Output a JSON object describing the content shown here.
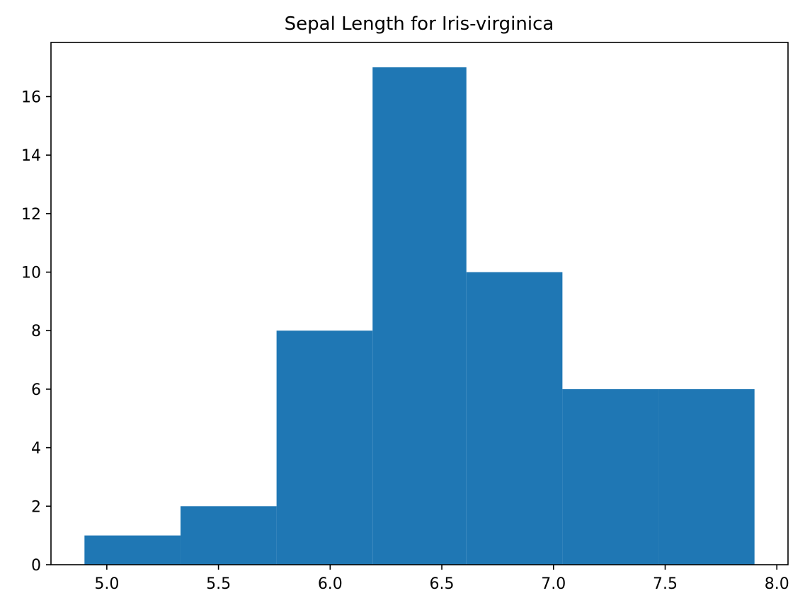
{
  "chart_data": {
    "type": "bar",
    "title": "Sepal Length for Iris-virginica",
    "xlabel": "",
    "ylabel": "",
    "bins": [
      {
        "x0": 4.9,
        "x1": 5.33,
        "count": 1
      },
      {
        "x0": 5.33,
        "x1": 5.76,
        "count": 2
      },
      {
        "x0": 5.76,
        "x1": 6.19,
        "count": 8
      },
      {
        "x0": 6.19,
        "x1": 6.61,
        "count": 17
      },
      {
        "x0": 6.61,
        "x1": 7.04,
        "count": 10
      },
      {
        "x0": 7.04,
        "x1": 7.47,
        "count": 6
      },
      {
        "x0": 7.47,
        "x1": 7.9,
        "count": 6
      }
    ],
    "xlim": [
      4.75,
      8.05
    ],
    "ylim": [
      0,
      17.85
    ],
    "xticks": [
      {
        "value": 5.0,
        "label": "5.0"
      },
      {
        "value": 5.5,
        "label": "5.5"
      },
      {
        "value": 6.0,
        "label": "6.0"
      },
      {
        "value": 6.5,
        "label": "6.5"
      },
      {
        "value": 7.0,
        "label": "7.0"
      },
      {
        "value": 7.5,
        "label": "7.5"
      },
      {
        "value": 8.0,
        "label": "8.0"
      }
    ],
    "yticks": [
      {
        "value": 0,
        "label": "0"
      },
      {
        "value": 2,
        "label": "2"
      },
      {
        "value": 4,
        "label": "4"
      },
      {
        "value": 6,
        "label": "6"
      },
      {
        "value": 8,
        "label": "8"
      },
      {
        "value": 10,
        "label": "10"
      },
      {
        "value": 12,
        "label": "12"
      },
      {
        "value": 14,
        "label": "14"
      },
      {
        "value": 16,
        "label": "16"
      }
    ],
    "grid": false,
    "colors": {
      "bar": "#1f77b4",
      "axis": "#000000",
      "background": "#ffffff"
    }
  }
}
